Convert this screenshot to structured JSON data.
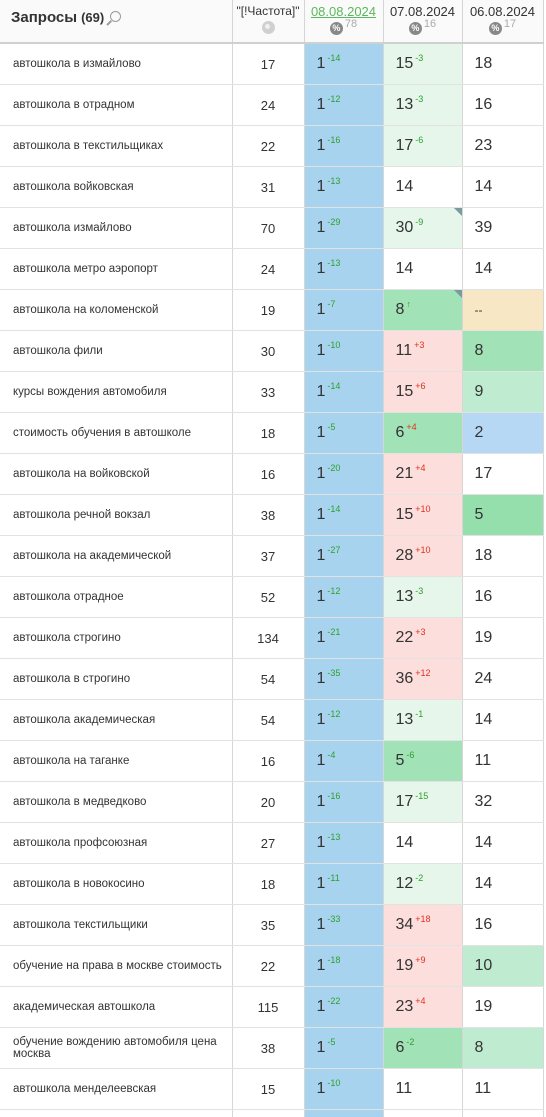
{
  "header": {
    "query_title": "Запросы",
    "query_count": "(69)",
    "freq_title": "\"[!Частота]\"",
    "dates": [
      {
        "label": "08.08.2024",
        "count": "78",
        "link": true
      },
      {
        "label": "07.08.2024",
        "count": "16",
        "link": false
      },
      {
        "label": "06.08.2024",
        "count": "17",
        "link": false
      }
    ],
    "pct_symbol": "%"
  },
  "colors": {
    "white": "#ffffff",
    "lightgreen": "#e6f6ea",
    "green": "#bfecd1",
    "mint": "#a2e2b7",
    "midgreen": "#94dfab",
    "pink": "#fcdedd",
    "yellow": "#f7e7c5",
    "blue": "#b7d8f4",
    "date1": "#a8d3ef"
  },
  "rows": [
    {
      "query": "автошкола в измайлово",
      "freq": "17",
      "d1": {
        "pos": "1",
        "chg": "-14"
      },
      "d2": {
        "pos": "15",
        "chg": "-3",
        "dir": "up",
        "bg": "lightgreen"
      },
      "d3": {
        "pos": "18",
        "bg": "white"
      }
    },
    {
      "query": "автошкола в отрадном",
      "freq": "24",
      "d1": {
        "pos": "1",
        "chg": "-12"
      },
      "d2": {
        "pos": "13",
        "chg": "-3",
        "dir": "up",
        "bg": "lightgreen"
      },
      "d3": {
        "pos": "16",
        "bg": "white"
      }
    },
    {
      "query": "автошкола в текстильщиках",
      "freq": "22",
      "d1": {
        "pos": "1",
        "chg": "-16"
      },
      "d2": {
        "pos": "17",
        "chg": "-6",
        "dir": "up",
        "bg": "lightgreen"
      },
      "d3": {
        "pos": "23",
        "bg": "white"
      }
    },
    {
      "query": "автошкола войковская",
      "freq": "31",
      "d1": {
        "pos": "1",
        "chg": "-13"
      },
      "d2": {
        "pos": "14",
        "chg": "",
        "dir": "",
        "bg": "white"
      },
      "d3": {
        "pos": "14",
        "bg": "white"
      }
    },
    {
      "query": "автошкола измайлово",
      "freq": "70",
      "d1": {
        "pos": "1",
        "chg": "-29"
      },
      "d2": {
        "pos": "30",
        "chg": "-9",
        "dir": "up",
        "bg": "lightgreen",
        "corner": true
      },
      "d3": {
        "pos": "39",
        "bg": "white"
      }
    },
    {
      "query": "автошкола метро аэропорт",
      "freq": "24",
      "d1": {
        "pos": "1",
        "chg": "-13"
      },
      "d2": {
        "pos": "14",
        "chg": "",
        "dir": "",
        "bg": "white"
      },
      "d3": {
        "pos": "14",
        "bg": "white"
      }
    },
    {
      "query": "автошкола на коломенской",
      "freq": "19",
      "d1": {
        "pos": "1",
        "chg": "-7"
      },
      "d2": {
        "pos": "8",
        "chg": "↑",
        "dir": "up",
        "bg": "mint",
        "corner": true
      },
      "d3": {
        "pos": "--",
        "bg": "yellow",
        "small": true
      }
    },
    {
      "query": "автошкола фили",
      "freq": "30",
      "d1": {
        "pos": "1",
        "chg": "-10"
      },
      "d2": {
        "pos": "11",
        "chg": "+3",
        "dir": "down",
        "bg": "pink"
      },
      "d3": {
        "pos": "8",
        "bg": "mint"
      }
    },
    {
      "query": "курсы вождения автомобиля",
      "freq": "33",
      "d1": {
        "pos": "1",
        "chg": "-14"
      },
      "d2": {
        "pos": "15",
        "chg": "+6",
        "dir": "down",
        "bg": "pink"
      },
      "d3": {
        "pos": "9",
        "bg": "green"
      }
    },
    {
      "query": "стоимость обучения в автошколе",
      "freq": "18",
      "d1": {
        "pos": "1",
        "chg": "-5"
      },
      "d2": {
        "pos": "6",
        "chg": "+4",
        "dir": "down",
        "bg": "mint"
      },
      "d3": {
        "pos": "2",
        "bg": "blue"
      }
    },
    {
      "query": "автошкола на войковской",
      "freq": "16",
      "d1": {
        "pos": "1",
        "chg": "-20"
      },
      "d2": {
        "pos": "21",
        "chg": "+4",
        "dir": "down",
        "bg": "pink"
      },
      "d3": {
        "pos": "17",
        "bg": "white"
      }
    },
    {
      "query": "автошкола речной вокзал",
      "freq": "38",
      "d1": {
        "pos": "1",
        "chg": "-14"
      },
      "d2": {
        "pos": "15",
        "chg": "+10",
        "dir": "down",
        "bg": "pink"
      },
      "d3": {
        "pos": "5",
        "bg": "midgreen"
      }
    },
    {
      "query": "автошкола на академической",
      "freq": "37",
      "d1": {
        "pos": "1",
        "chg": "-27"
      },
      "d2": {
        "pos": "28",
        "chg": "+10",
        "dir": "down",
        "bg": "pink"
      },
      "d3": {
        "pos": "18",
        "bg": "white"
      }
    },
    {
      "query": "автошкола отрадное",
      "freq": "52",
      "d1": {
        "pos": "1",
        "chg": "-12"
      },
      "d2": {
        "pos": "13",
        "chg": "-3",
        "dir": "up",
        "bg": "lightgreen"
      },
      "d3": {
        "pos": "16",
        "bg": "white"
      }
    },
    {
      "query": "автошкола строгино",
      "freq": "134",
      "d1": {
        "pos": "1",
        "chg": "-21"
      },
      "d2": {
        "pos": "22",
        "chg": "+3",
        "dir": "down",
        "bg": "pink"
      },
      "d3": {
        "pos": "19",
        "bg": "white"
      }
    },
    {
      "query": "автошкола в строгино",
      "freq": "54",
      "d1": {
        "pos": "1",
        "chg": "-35"
      },
      "d2": {
        "pos": "36",
        "chg": "+12",
        "dir": "down",
        "bg": "pink"
      },
      "d3": {
        "pos": "24",
        "bg": "white"
      }
    },
    {
      "query": "автошкола академическая",
      "freq": "54",
      "d1": {
        "pos": "1",
        "chg": "-12"
      },
      "d2": {
        "pos": "13",
        "chg": "-1",
        "dir": "up",
        "bg": "lightgreen"
      },
      "d3": {
        "pos": "14",
        "bg": "white"
      }
    },
    {
      "query": "автошкола на таганке",
      "freq": "16",
      "d1": {
        "pos": "1",
        "chg": "-4"
      },
      "d2": {
        "pos": "5",
        "chg": "-6",
        "dir": "up",
        "bg": "mint"
      },
      "d3": {
        "pos": "11",
        "bg": "white"
      }
    },
    {
      "query": "автошкола в медведково",
      "freq": "20",
      "d1": {
        "pos": "1",
        "chg": "-16"
      },
      "d2": {
        "pos": "17",
        "chg": "-15",
        "dir": "up",
        "bg": "lightgreen"
      },
      "d3": {
        "pos": "32",
        "bg": "white"
      }
    },
    {
      "query": "автошкола профсоюзная",
      "freq": "27",
      "d1": {
        "pos": "1",
        "chg": "-13"
      },
      "d2": {
        "pos": "14",
        "chg": "",
        "dir": "",
        "bg": "white"
      },
      "d3": {
        "pos": "14",
        "bg": "white"
      }
    },
    {
      "query": "автошкола в новокосино",
      "freq": "18",
      "d1": {
        "pos": "1",
        "chg": "-11"
      },
      "d2": {
        "pos": "12",
        "chg": "-2",
        "dir": "up",
        "bg": "lightgreen"
      },
      "d3": {
        "pos": "14",
        "bg": "white"
      }
    },
    {
      "query": "автошкола текстильщики",
      "freq": "35",
      "d1": {
        "pos": "1",
        "chg": "-33"
      },
      "d2": {
        "pos": "34",
        "chg": "+18",
        "dir": "down",
        "bg": "pink"
      },
      "d3": {
        "pos": "16",
        "bg": "white"
      }
    },
    {
      "query": "обучение на права в москве стоимость",
      "freq": "22",
      "d1": {
        "pos": "1",
        "chg": "-18"
      },
      "d2": {
        "pos": "19",
        "chg": "+9",
        "dir": "down",
        "bg": "pink"
      },
      "d3": {
        "pos": "10",
        "bg": "green"
      }
    },
    {
      "query": "академическая автошкола",
      "freq": "115",
      "d1": {
        "pos": "1",
        "chg": "-22"
      },
      "d2": {
        "pos": "23",
        "chg": "+4",
        "dir": "down",
        "bg": "pink"
      },
      "d3": {
        "pos": "19",
        "bg": "white"
      }
    },
    {
      "query": "обучение вождению автомобиля цена москва",
      "freq": "38",
      "d1": {
        "pos": "1",
        "chg": "-5"
      },
      "d2": {
        "pos": "6",
        "chg": "-2",
        "dir": "up",
        "bg": "mint"
      },
      "d3": {
        "pos": "8",
        "bg": "green"
      }
    },
    {
      "query": "автошкола менделеевская",
      "freq": "15",
      "d1": {
        "pos": "1",
        "chg": "-10"
      },
      "d2": {
        "pos": "11",
        "chg": "",
        "dir": "",
        "bg": "white"
      },
      "d3": {
        "pos": "11",
        "bg": "white"
      }
    }
  ]
}
